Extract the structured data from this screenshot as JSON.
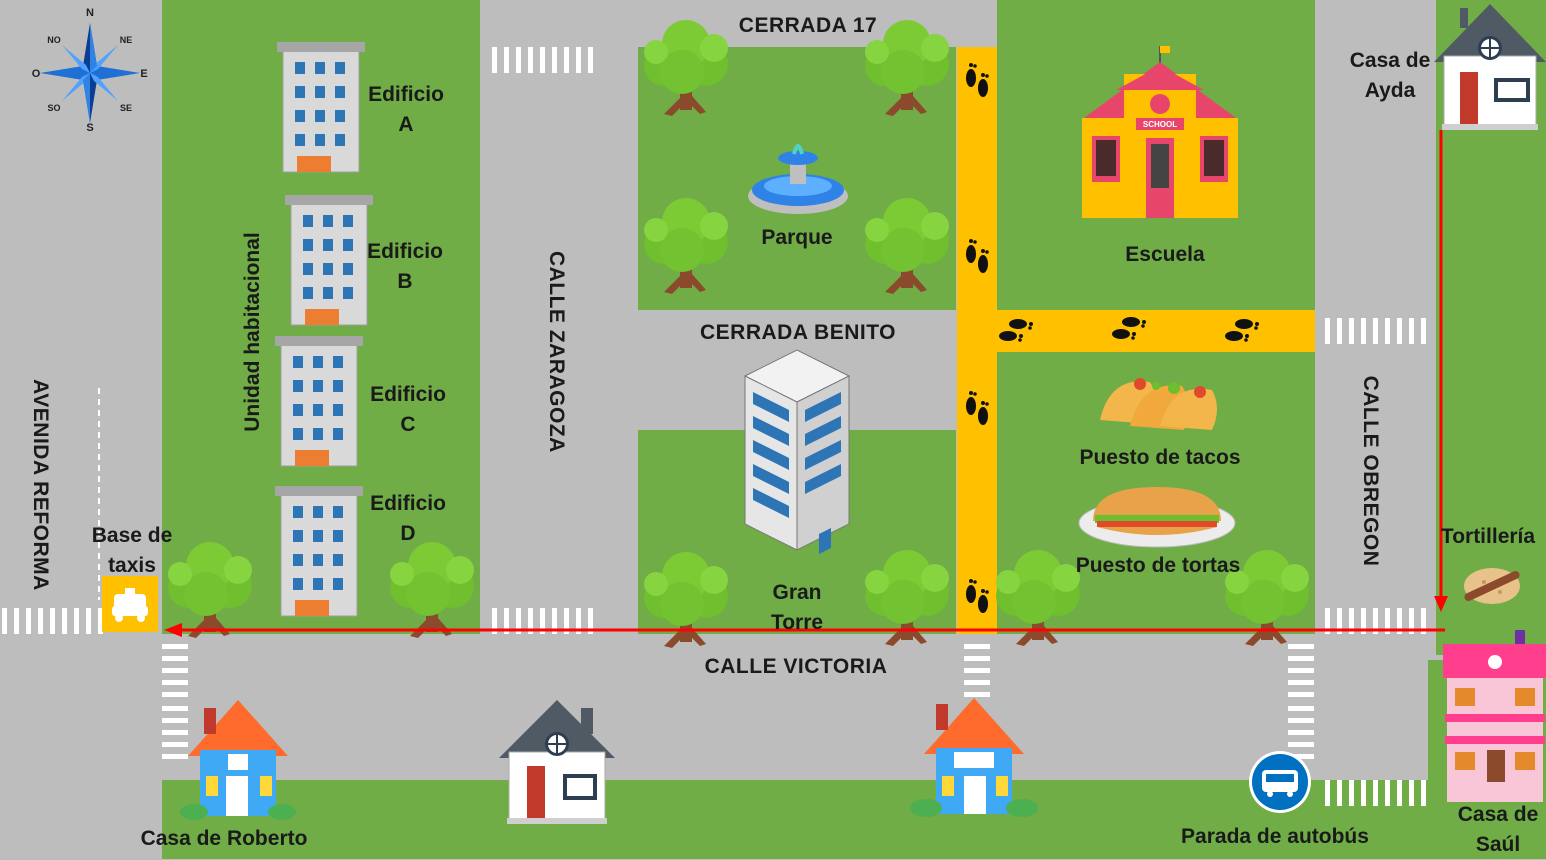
{
  "map": {
    "compass": {
      "n": "N",
      "ne": "NE",
      "e": "E",
      "se": "SE",
      "s": "S",
      "so": "SO",
      "o": "O",
      "no": "NO"
    },
    "streets": {
      "cerrada17": "CERRADA 17",
      "cerradaBenito": "CERRADA BENITO",
      "calleVictoria": "CALLE VICTORIA",
      "calleZaragoza": "CALLE ZARAGOZA",
      "calleObregon": "CALLE OBREGON",
      "avenidaReforma": "AVENIDA REFORMA"
    },
    "places": {
      "unidad": "Unidad habitacional",
      "edificioA": [
        "Edificio",
        "A"
      ],
      "edificioB": [
        "Edificio",
        "B"
      ],
      "edificioC": [
        "Edificio",
        "C"
      ],
      "edificioD": [
        "Edificio",
        "D"
      ],
      "parque": "Parque",
      "escuela": "Escuela",
      "schoolSign": "SCHOOL",
      "granTorre": [
        "Gran",
        "Torre"
      ],
      "tacos": "Puesto de tacos",
      "tortas": "Puesto de tortas",
      "baseTaxis": [
        "Base de",
        "taxis"
      ],
      "casaAyda": [
        "Casa de",
        "Ayda"
      ],
      "tortilleria": "Tortillería",
      "casaSaul": [
        "Casa de",
        "Saúl"
      ],
      "casaRoberto": "Casa de Roberto",
      "paradaAutobus": "Parada de autobús"
    },
    "colors": {
      "grass": "#70ad47",
      "road": "#bdbdbd",
      "footpath": "#ffc000",
      "route": "#ff0000",
      "busSign": "#0070c0"
    }
  }
}
